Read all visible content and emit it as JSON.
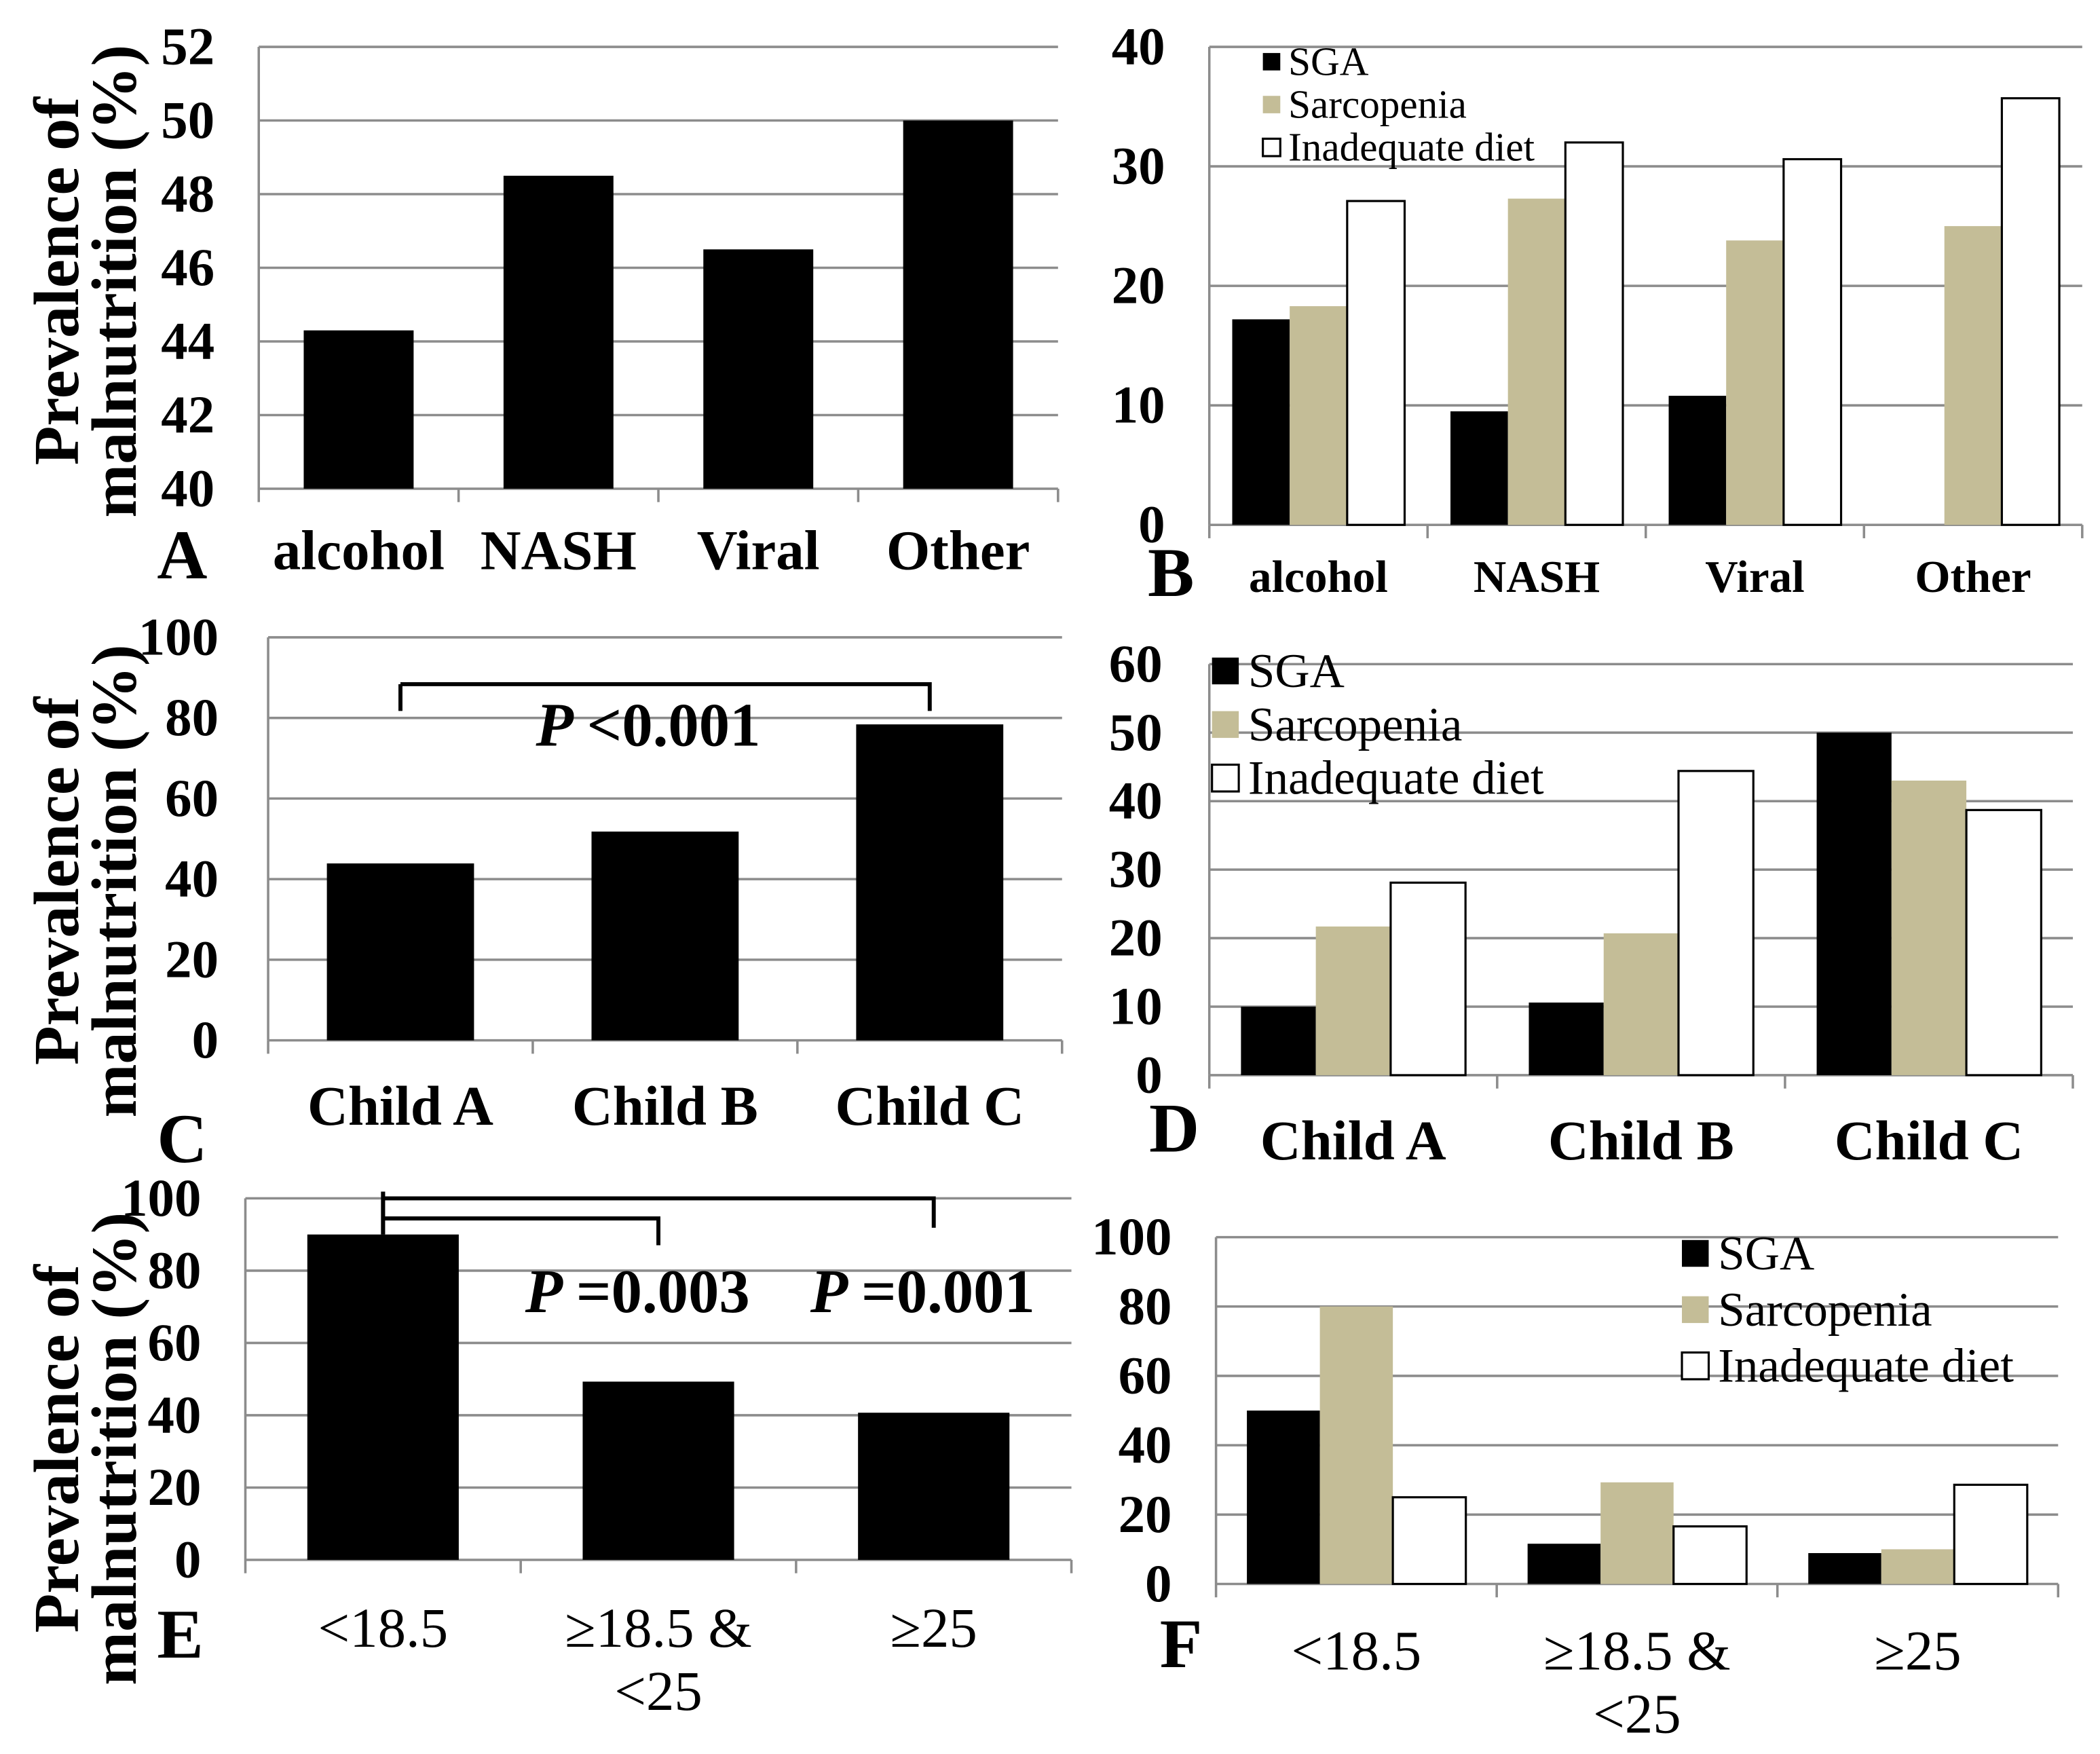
{
  "chart_data": [
    {
      "panel_label": "A",
      "type": "bar",
      "categories": [
        "alcohol",
        "NASH",
        "Viral",
        "Other"
      ],
      "values": [
        44.3,
        48.5,
        46.5,
        50.0
      ],
      "color": "#000000",
      "ylabel": [
        "Prevalence of",
        "malnutrition (%)"
      ],
      "ylim": [
        40,
        52
      ],
      "yticks": [
        40,
        42,
        44,
        46,
        48,
        50,
        52
      ],
      "grid": true
    },
    {
      "panel_label": "B",
      "type": "bar",
      "categories": [
        "alcohol",
        "NASH",
        "Viral",
        "Other"
      ],
      "series": [
        {
          "name": "SGA",
          "values": [
            17.2,
            9.5,
            10.8,
            0
          ],
          "color": "#000000"
        },
        {
          "name": "Sarcopenia",
          "values": [
            18.3,
            27.3,
            23.8,
            25.0
          ],
          "color": "#c4bd97"
        },
        {
          "name": "Inadequate diet",
          "values": [
            27.1,
            32.0,
            30.6,
            35.7
          ],
          "color": "#ffffff"
        }
      ],
      "ylim": [
        0,
        40
      ],
      "yticks": [
        0,
        10,
        20,
        30,
        40
      ],
      "grid": true,
      "legend": "top-left"
    },
    {
      "panel_label": "C",
      "type": "bar",
      "categories": [
        "Child A",
        "Child B",
        "Child C"
      ],
      "values": [
        43.9,
        51.8,
        78.4
      ],
      "color": "#000000",
      "ylabel": [
        "Prevalence of",
        "malnutrition (%)"
      ],
      "ylim": [
        0,
        100
      ],
      "yticks": [
        0,
        20,
        40,
        60,
        80,
        100
      ],
      "grid": true,
      "brackets": [
        {
          "from": 0,
          "to": 2,
          "symbol": "P",
          "text": "<0.001"
        }
      ]
    },
    {
      "panel_label": "D",
      "type": "bar",
      "categories": [
        "Child A",
        "Child B",
        "Child C"
      ],
      "series": [
        {
          "name": "SGA",
          "values": [
            10.0,
            10.6,
            50.0
          ],
          "color": "#000000"
        },
        {
          "name": "Sarcopenia",
          "values": [
            21.7,
            20.7,
            43.0
          ],
          "color": "#c4bd97"
        },
        {
          "name": "Inadequate diet",
          "values": [
            28.1,
            44.4,
            38.7
          ],
          "color": "#ffffff"
        }
      ],
      "ylim": [
        0,
        60
      ],
      "yticks": [
        0,
        10,
        20,
        30,
        40,
        50,
        60
      ],
      "grid": true,
      "legend": "top-left"
    },
    {
      "panel_label": "E",
      "type": "bar",
      "categories": [
        "<18.5",
        [
          "≥18.5 &",
          "<25"
        ],
        "≥25"
      ],
      "values": [
        90.0,
        49.3,
        40.7
      ],
      "color": "#000000",
      "ylabel": [
        "Prevalence of",
        "malnutrition (%)"
      ],
      "ylim": [
        0,
        100
      ],
      "yticks": [
        0,
        20,
        40,
        60,
        80,
        100
      ],
      "grid": true,
      "brackets": [
        {
          "from": 0,
          "to": 1,
          "symbol": "P",
          "text": "=0.003"
        },
        {
          "from": 0,
          "to": 2,
          "symbol": "P",
          "text": "=0.001"
        }
      ]
    },
    {
      "panel_label": "F",
      "type": "bar",
      "categories": [
        "<18.5",
        [
          "≥18.5 &",
          "<25"
        ],
        "≥25"
      ],
      "series": [
        {
          "name": "SGA",
          "values": [
            50.0,
            11.6,
            8.9
          ],
          "color": "#000000"
        },
        {
          "name": "Sarcopenia",
          "values": [
            80.0,
            29.3,
            10.0
          ],
          "color": "#c4bd97"
        },
        {
          "name": "Inadequate diet",
          "values": [
            25.0,
            16.6,
            28.6
          ],
          "color": "#ffffff"
        }
      ],
      "ylim": [
        0,
        100
      ],
      "yticks": [
        0,
        20,
        40,
        60,
        80,
        100
      ],
      "grid": true,
      "legend": "top-right"
    }
  ]
}
